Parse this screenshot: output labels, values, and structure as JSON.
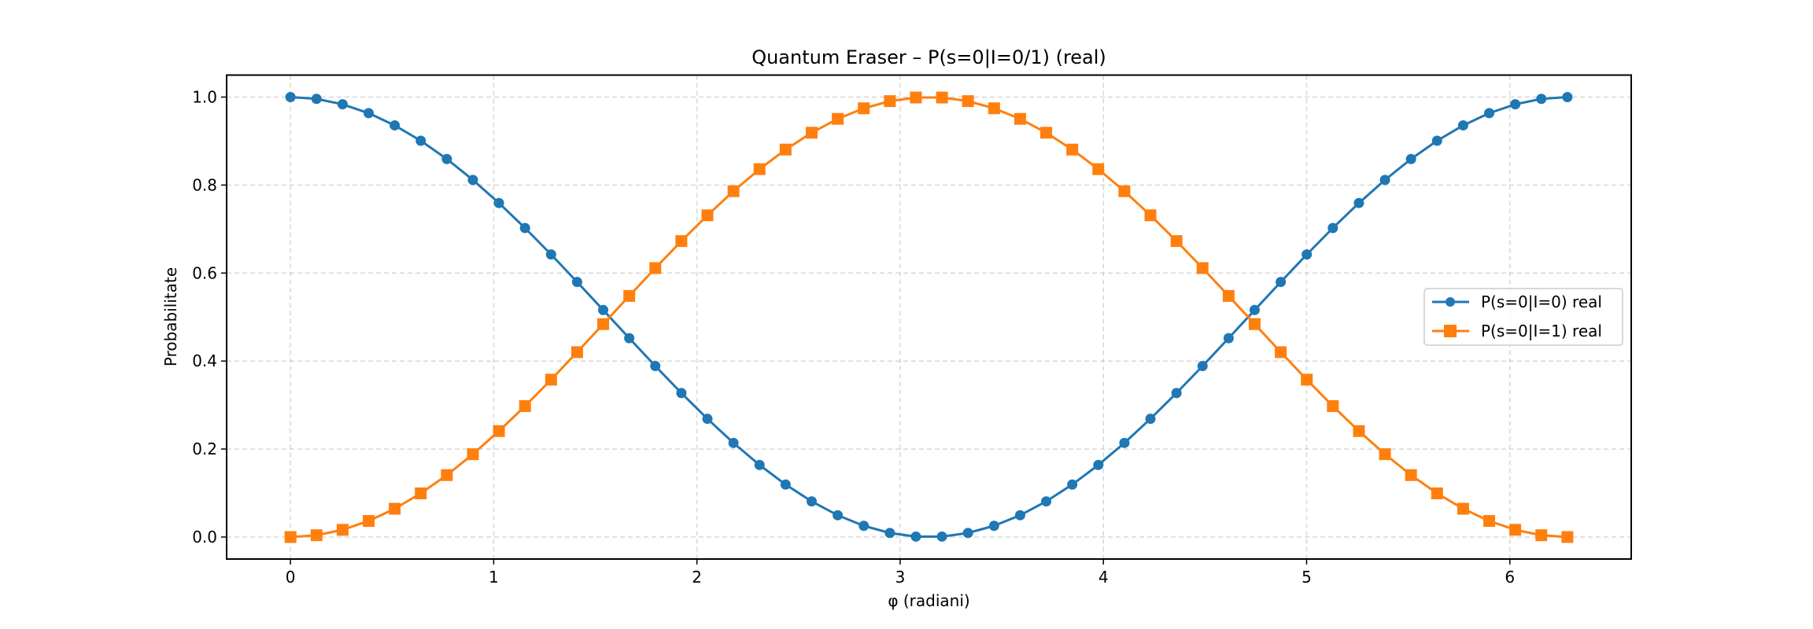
{
  "chart_data": {
    "type": "line",
    "title": "Quantum Eraser – P(s=0|I=0/1) (real)",
    "xlabel": "φ (radiani)",
    "ylabel": "Probabilitate",
    "xlim": [
      -0.3142,
      6.5973
    ],
    "ylim": [
      -0.05,
      1.05
    ],
    "xticks": [
      0,
      1,
      2,
      3,
      4,
      5,
      6
    ],
    "xtick_labels": [
      "0",
      "1",
      "2",
      "3",
      "4",
      "5",
      "6"
    ],
    "yticks": [
      0.0,
      0.2,
      0.4,
      0.6,
      0.8,
      1.0
    ],
    "ytick_labels": [
      "0.0",
      "0.2",
      "0.4",
      "0.6",
      "0.8",
      "1.0"
    ],
    "grid": true,
    "legend_position": "center-right",
    "x": [
      0,
      0.1282,
      0.2565,
      0.3847,
      0.5129,
      0.6411,
      0.7694,
      0.8976,
      1.0258,
      1.1541,
      1.2823,
      1.4105,
      1.5387,
      1.667,
      1.7952,
      1.9234,
      2.0517,
      2.1799,
      2.3081,
      2.4363,
      2.5646,
      2.6928,
      2.821,
      2.9493,
      3.0775,
      3.2057,
      3.3339,
      3.4622,
      3.5904,
      3.7186,
      3.8468,
      3.9751,
      4.1033,
      4.2315,
      4.3598,
      4.488,
      4.6162,
      4.7444,
      4.8727,
      5.0009,
      5.1291,
      5.2574,
      5.3856,
      5.5138,
      5.642,
      5.7703,
      5.8985,
      6.0267,
      6.155,
      6.2832
    ],
    "series": [
      {
        "name": "P(s=0|I=0) real",
        "color": "#1f77b4",
        "marker": "circle",
        "values": [
          1.0,
          0.9959,
          0.9836,
          0.9635,
          0.9357,
          0.9008,
          0.8592,
          0.8117,
          0.7592,
          0.7024,
          0.6423,
          0.5798,
          0.516,
          0.452,
          0.3887,
          0.3273,
          0.2687,
          0.2139,
          0.1638,
          0.1193,
          0.081,
          0.0495,
          0.0255,
          0.0092,
          0.001,
          0.001,
          0.0092,
          0.0255,
          0.0495,
          0.081,
          0.1193,
          0.1638,
          0.2139,
          0.2687,
          0.3273,
          0.3887,
          0.452,
          0.516,
          0.5798,
          0.6423,
          0.7024,
          0.7592,
          0.8117,
          0.8592,
          0.9008,
          0.9357,
          0.9635,
          0.9836,
          0.9959,
          1.0
        ]
      },
      {
        "name": "P(s=0|I=1) real",
        "color": "#ff7f0e",
        "marker": "square",
        "values": [
          0.0,
          0.0041,
          0.0164,
          0.0365,
          0.0643,
          0.0992,
          0.1408,
          0.1883,
          0.2408,
          0.2976,
          0.3577,
          0.4202,
          0.484,
          0.548,
          0.6113,
          0.6727,
          0.7313,
          0.7861,
          0.8362,
          0.8807,
          0.919,
          0.9505,
          0.9745,
          0.9908,
          0.999,
          0.999,
          0.9908,
          0.9745,
          0.9505,
          0.919,
          0.8807,
          0.8362,
          0.7861,
          0.7313,
          0.6727,
          0.6113,
          0.548,
          0.484,
          0.4202,
          0.3577,
          0.2976,
          0.2408,
          0.1883,
          0.1408,
          0.0992,
          0.0643,
          0.0365,
          0.0164,
          0.0041,
          0.0
        ]
      }
    ]
  }
}
